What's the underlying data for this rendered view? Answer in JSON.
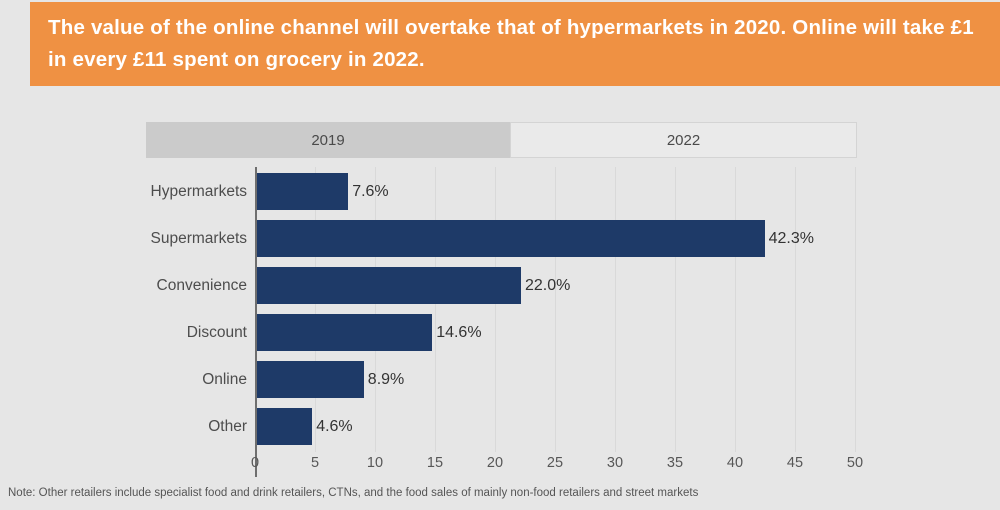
{
  "banner": {
    "text": "The value of the online channel will overtake that of hypermarkets in 2020. Online will take £1 in every £11 spent on grocery in 2022."
  },
  "tabs": [
    {
      "label": "2019",
      "active": true
    },
    {
      "label": "2022",
      "active": false
    }
  ],
  "chart_data": {
    "type": "bar",
    "orientation": "horizontal",
    "title": "",
    "xlabel": "",
    "ylabel": "",
    "categories": [
      "Hypermarkets",
      "Supermarkets",
      "Convenience",
      "Discount",
      "Online",
      "Other"
    ],
    "series": [
      {
        "name": "2019",
        "values": [
          7.6,
          42.3,
          22.0,
          14.6,
          8.9,
          4.6
        ]
      }
    ],
    "value_labels": [
      "7.6%",
      "42.3%",
      "22.0%",
      "14.6%",
      "8.9%",
      "4.6%"
    ],
    "xlim": [
      0,
      50
    ],
    "xticks": [
      0,
      5,
      10,
      15,
      20,
      25,
      30,
      35,
      40,
      45,
      50
    ],
    "grid": true,
    "legend_position": "none"
  },
  "note": {
    "text": "Note: Other retailers include specialist food and drink retailers, CTNs, and the food sales of mainly non-food retailers and street markets"
  },
  "colors": {
    "banner_bg": "#ef9143",
    "banner_text": "#ffffff",
    "page_bg": "#e6e6e6",
    "bar": "#1e3a68",
    "tab_active_bg": "#cbcbcb",
    "tab_inactive_bg": "#eaeaea",
    "category_text": "#4d4d4d",
    "value_text": "#333333",
    "tick_text": "#575757",
    "gridline": "#d9d9d9",
    "axis_line": "#6e6e6e"
  }
}
